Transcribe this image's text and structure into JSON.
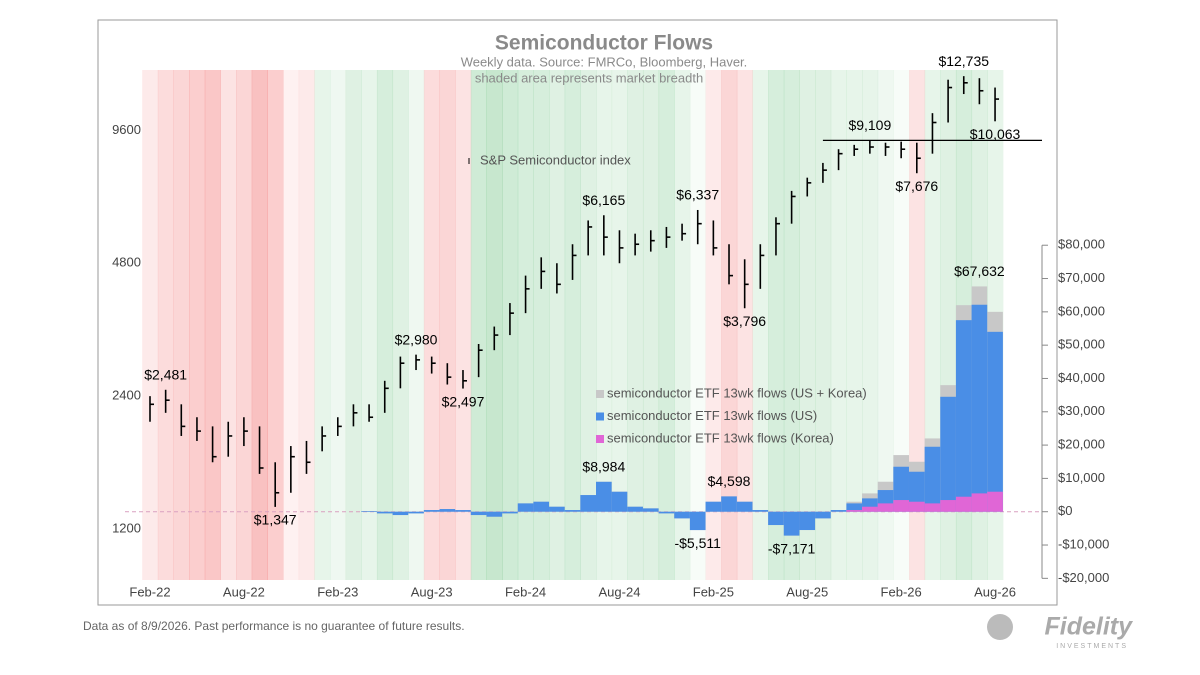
{
  "chart_data": {
    "type": "combo",
    "title": "Semiconductor Flows",
    "subtitle": [
      "Weekly data.  Source: FMRCo, Bloomberg, Haver.",
      "shaded area represents market breadth"
    ],
    "x": [
      "2022-02",
      "2022-03",
      "2022-04",
      "2022-05",
      "2022-06",
      "2022-07",
      "2022-08",
      "2022-09",
      "2022-10",
      "2022-11",
      "2022-12",
      "2023-01",
      "2023-02",
      "2023-03",
      "2023-04",
      "2023-05",
      "2023-06",
      "2023-07",
      "2023-08",
      "2023-09",
      "2023-10",
      "2023-11",
      "2023-12",
      "2024-01",
      "2024-02",
      "2024-03",
      "2024-04",
      "2024-05",
      "2024-06",
      "2024-07",
      "2024-08",
      "2024-09",
      "2024-10",
      "2024-11",
      "2024-12",
      "2025-01",
      "2025-02",
      "2025-03",
      "2025-04",
      "2025-05",
      "2025-06",
      "2025-07",
      "2025-08",
      "2025-09",
      "2025-10",
      "2025-11",
      "2025-12",
      "2026-01",
      "2026-02",
      "2026-03",
      "2026-04",
      "2026-05",
      "2026-06",
      "2026-07",
      "2026-08"
    ],
    "xlim": [
      "2022-02",
      "2026-11"
    ],
    "xticks": [
      {
        "value": "2022-02",
        "label": "Feb-22"
      },
      {
        "value": "2022-08",
        "label": "Aug-22"
      },
      {
        "value": "2023-02",
        "label": "Feb-23"
      },
      {
        "value": "2023-08",
        "label": "Aug-23"
      },
      {
        "value": "2024-02",
        "label": "Feb-24"
      },
      {
        "value": "2024-08",
        "label": "Aug-24"
      },
      {
        "value": "2025-02",
        "label": "Feb-25"
      },
      {
        "value": "2025-08",
        "label": "Aug-25"
      },
      {
        "value": "2026-02",
        "label": "Feb-26"
      },
      {
        "value": "2026-08",
        "label": "Aug-26"
      }
    ],
    "yscale": "log",
    "ylim": [
      920,
      13150
    ],
    "yticks": [
      1200,
      2400,
      4800,
      9600
    ],
    "y2lim": [
      -20500,
      132600
    ],
    "y2ticks": [
      {
        "value": -20000,
        "label": "-$20,000"
      },
      {
        "value": -10000,
        "label": "-$10,000"
      },
      {
        "value": 0,
        "label": "$0"
      },
      {
        "value": 10000,
        "label": "$10,000"
      },
      {
        "value": 20000,
        "label": "$20,000"
      },
      {
        "value": 30000,
        "label": "$30,000"
      },
      {
        "value": 40000,
        "label": "$40,000"
      },
      {
        "value": 50000,
        "label": "$50,000"
      },
      {
        "value": 60000,
        "label": "$60,000"
      },
      {
        "value": 70000,
        "label": "$70,000"
      },
      {
        "value": 80000,
        "label": "$80,000"
      }
    ],
    "breadth": [
      -0.3,
      -0.5,
      -0.6,
      -0.7,
      -0.8,
      -0.4,
      -0.6,
      -0.9,
      -0.7,
      -0.2,
      -0.3,
      0.3,
      0.2,
      0.4,
      0.3,
      0.5,
      0.4,
      0.2,
      -0.5,
      -0.6,
      -0.4,
      0.6,
      0.7,
      0.6,
      0.5,
      0.5,
      0.4,
      0.5,
      0.4,
      0.3,
      0.3,
      0.4,
      0.4,
      0.5,
      0.3,
      0.1,
      -0.3,
      -0.6,
      -0.4,
      0.3,
      0.5,
      0.5,
      0.4,
      0.4,
      0.3,
      0.3,
      0.3,
      0.2,
      0.1,
      -0.4,
      0.3,
      0.4,
      0.5,
      0.4,
      0.3
    ],
    "series": [
      {
        "name": "S&P Semiconductor index",
        "type": "hlc",
        "color": "#000000",
        "high": [
          2400,
          2481,
          2300,
          2150,
          2050,
          2100,
          2150,
          2050,
          1700,
          1850,
          1900,
          2050,
          2150,
          2300,
          2300,
          2600,
          2950,
          2980,
          2950,
          2850,
          2750,
          3150,
          3450,
          3900,
          4500,
          4950,
          4800,
          5300,
          6000,
          6165,
          5700,
          5600,
          5700,
          5800,
          5900,
          6337,
          6000,
          5300,
          4900,
          5300,
          6100,
          7000,
          7500,
          8100,
          8700,
          8900,
          9109,
          9000,
          9050,
          9000,
          10500,
          12500,
          12735,
          12600,
          12000
        ],
        "low": [
          2100,
          2200,
          1950,
          1900,
          1700,
          1750,
          1850,
          1600,
          1347,
          1450,
          1600,
          1800,
          1950,
          2050,
          2100,
          2200,
          2500,
          2750,
          2700,
          2550,
          2497,
          2650,
          3050,
          3300,
          3700,
          4200,
          4100,
          4400,
          5000,
          5000,
          4800,
          5000,
          5100,
          5200,
          5400,
          5300,
          5000,
          4300,
          3796,
          4200,
          5000,
          5900,
          6800,
          7300,
          7800,
          8400,
          8500,
          8400,
          8300,
          7676,
          8500,
          10000,
          11600,
          11000,
          10063
        ],
        "values": [
          2300,
          2350,
          2050,
          2000,
          1750,
          1950,
          2000,
          1650,
          1450,
          1750,
          1700,
          1950,
          2050,
          2200,
          2150,
          2500,
          2850,
          2900,
          2850,
          2650,
          2600,
          3050,
          3300,
          3700,
          4200,
          4600,
          4300,
          5000,
          5800,
          5500,
          5200,
          5300,
          5400,
          5500,
          5600,
          5900,
          5200,
          4500,
          4300,
          5000,
          5900,
          6800,
          7300,
          7800,
          8500,
          8700,
          8800,
          8800,
          8700,
          8300,
          10000,
          12000,
          12300,
          11800,
          11300
        ]
      },
      {
        "name": "semiconductor ETF 13wk flows (US + Korea)",
        "type": "bar",
        "axis": "y2",
        "color": "#c8c8c8",
        "values": [
          null,
          null,
          null,
          null,
          null,
          null,
          null,
          null,
          null,
          null,
          null,
          null,
          null,
          null,
          200,
          -500,
          -1000,
          -500,
          500,
          800,
          500,
          -1000,
          -1500,
          -500,
          2500,
          3000,
          1500,
          500,
          5000,
          8984,
          6000,
          1500,
          1000,
          -500,
          -2000,
          -5511,
          3000,
          4598,
          3000,
          500,
          -4000,
          -7171,
          -5500,
          -2000,
          500,
          3000,
          5500,
          9000,
          17000,
          15000,
          22000,
          38000,
          62000,
          67632,
          60000
        ]
      },
      {
        "name": "semiconductor ETF 13wk flows (US)",
        "type": "bar",
        "axis": "y2",
        "color": "#4a8ee6",
        "values": [
          null,
          null,
          null,
          null,
          null,
          null,
          null,
          null,
          null,
          null,
          null,
          null,
          null,
          null,
          200,
          -500,
          -1000,
          -500,
          500,
          800,
          500,
          -1000,
          -1500,
          -500,
          2500,
          3000,
          1500,
          500,
          5000,
          8984,
          6000,
          1500,
          1000,
          -500,
          -2000,
          -5511,
          3000,
          4598,
          3000,
          500,
          -4000,
          -7171,
          -5500,
          -2000,
          500,
          2500,
          4000,
          6500,
          13500,
          12000,
          19500,
          34500,
          57500,
          62132,
          54000
        ]
      },
      {
        "name": "semiconductor ETF 13wk flows (Korea)",
        "type": "bar",
        "axis": "y2",
        "color": "#e066d6",
        "values": [
          null,
          null,
          null,
          null,
          null,
          null,
          null,
          null,
          null,
          null,
          null,
          null,
          null,
          null,
          0,
          0,
          0,
          0,
          0,
          0,
          0,
          0,
          0,
          0,
          0,
          0,
          0,
          0,
          0,
          0,
          0,
          0,
          0,
          0,
          0,
          0,
          0,
          0,
          0,
          0,
          0,
          0,
          0,
          0,
          0,
          500,
          1500,
          2500,
          3500,
          3000,
          2500,
          3500,
          4500,
          5500,
          6000
        ]
      }
    ],
    "reference_line": {
      "value": 9109,
      "from": "2025-09"
    },
    "annotations": [
      {
        "x": "2022-03",
        "value": 2481,
        "label": "$2,481",
        "position": "above"
      },
      {
        "x": "2022-10",
        "value": 1347,
        "label": "$1,347",
        "position": "below"
      },
      {
        "x": "2023-07",
        "value": 2980,
        "label": "$2,980",
        "position": "above"
      },
      {
        "x": "2023-10",
        "value": 2497,
        "label": "$2,497",
        "position": "below"
      },
      {
        "x": "2024-07",
        "value": 6165,
        "label": "$6,165",
        "position": "above"
      },
      {
        "x": "2025-01",
        "value": 6337,
        "label": "$6,337",
        "position": "above"
      },
      {
        "x": "2025-04",
        "value": 3796,
        "label": "$3,796",
        "position": "below"
      },
      {
        "x": "2025-12",
        "value": 9109,
        "label": "$9,109",
        "position": "above"
      },
      {
        "x": "2026-03",
        "value": 7676,
        "label": "$7,676",
        "position": "below"
      },
      {
        "x": "2026-06",
        "value": 12735,
        "label": "$12,735",
        "position": "above"
      },
      {
        "x": "2026-08",
        "value": 10063,
        "label": "$10,063",
        "position": "below"
      },
      {
        "x": "2024-07",
        "value": 8984,
        "label": "$8,984",
        "position": "above",
        "axis": "y2"
      },
      {
        "x": "2025-01",
        "value": -5511,
        "label": "-$5,511",
        "position": "below",
        "axis": "y2"
      },
      {
        "x": "2025-03",
        "value": 4598,
        "label": "$4,598",
        "position": "above",
        "axis": "y2"
      },
      {
        "x": "2025-07",
        "value": -7171,
        "label": "-$7,171",
        "position": "below",
        "axis": "y2"
      },
      {
        "x": "2026-07",
        "value": 67632,
        "label": "$67,632",
        "position": "above",
        "axis": "y2"
      }
    ]
  },
  "footer": {
    "note": "Data as of 8/9/2026. Past performance is no guarantee of future results.",
    "logo": "Fidelity",
    "logo_sub": "INVESTMENTS"
  }
}
